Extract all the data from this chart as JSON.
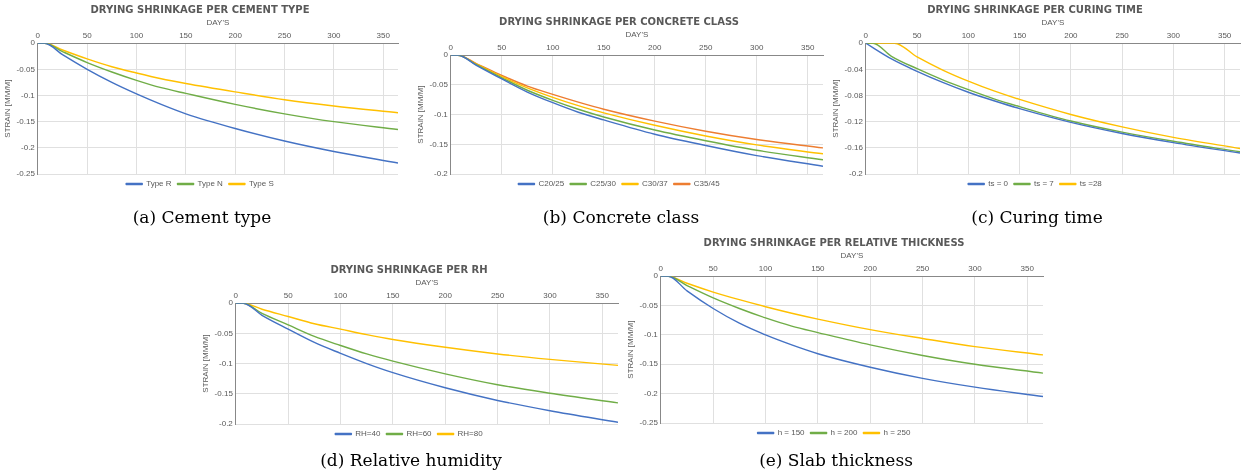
{
  "chart_data": [
    {
      "type": "line",
      "title": "DRYING SHRINKAGE PER CEMENT TYPE",
      "xlabel": "DAY'S",
      "ylabel": "STRAIN [MM/M]",
      "annotations": [
        "(a) Cement type"
      ],
      "x": [
        0,
        7,
        25,
        50,
        75,
        100,
        125,
        150,
        200,
        250,
        300,
        365
      ],
      "xlim": [
        0,
        365
      ],
      "xticks": [
        0,
        50,
        100,
        150,
        200,
        250,
        300,
        350
      ],
      "ylim": [
        -0.25,
        0
      ],
      "yticks": [
        0,
        -0.05,
        -0.1,
        -0.15,
        -0.2,
        -0.25
      ],
      "grid": true,
      "legend": "bottom",
      "marker": "none",
      "line_style": "solid",
      "series": [
        {
          "name": "Type R",
          "color": "#4472c4",
          "values": [
            0,
            0,
            -0.022,
            -0.05,
            -0.075,
            -0.097,
            -0.117,
            -0.135,
            -0.163,
            -0.187,
            -0.207,
            -0.229
          ]
        },
        {
          "name": "Type N",
          "color": "#70ad47",
          "values": [
            0,
            0,
            -0.016,
            -0.037,
            -0.055,
            -0.071,
            -0.085,
            -0.096,
            -0.117,
            -0.135,
            -0.15,
            -0.165
          ]
        },
        {
          "name": "Type S",
          "color": "#ffc000",
          "values": [
            0,
            0,
            -0.013,
            -0.03,
            -0.045,
            -0.057,
            -0.068,
            -0.077,
            -0.093,
            -0.108,
            -0.12,
            -0.133
          ]
        }
      ]
    },
    {
      "type": "line",
      "title": "DRYING SHRINKAGE PER CONCRETE CLASS",
      "xlabel": "DAY'S",
      "ylabel": "STRAIN [MM/M]",
      "annotations": [
        "(b) Concrete class"
      ],
      "x": [
        0,
        7,
        25,
        50,
        75,
        100,
        125,
        150,
        200,
        250,
        300,
        365
      ],
      "xlim": [
        0,
        365
      ],
      "xticks": [
        0,
        50,
        100,
        150,
        200,
        250,
        300,
        350
      ],
      "ylim": [
        -0.2,
        0
      ],
      "yticks": [
        0,
        -0.05,
        -0.1,
        -0.15,
        -0.2
      ],
      "grid": true,
      "legend": "bottom",
      "marker": "none",
      "line_style": "solid",
      "series": [
        {
          "name": "C20/25",
          "color": "#4472c4",
          "values": [
            0,
            0,
            -0.017,
            -0.04,
            -0.062,
            -0.08,
            -0.096,
            -0.109,
            -0.133,
            -0.152,
            -0.169,
            -0.187
          ]
        },
        {
          "name": "C25/30",
          "color": "#70ad47",
          "values": [
            0,
            0,
            -0.016,
            -0.038,
            -0.059,
            -0.076,
            -0.091,
            -0.104,
            -0.126,
            -0.144,
            -0.16,
            -0.176
          ]
        },
        {
          "name": "C30/37",
          "color": "#ffc000",
          "values": [
            0,
            0,
            -0.015,
            -0.036,
            -0.055,
            -0.071,
            -0.085,
            -0.097,
            -0.118,
            -0.136,
            -0.151,
            -0.166
          ]
        },
        {
          "name": "C35/45",
          "color": "#ed7d31",
          "values": [
            0,
            0,
            -0.014,
            -0.034,
            -0.052,
            -0.066,
            -0.079,
            -0.091,
            -0.111,
            -0.128,
            -0.142,
            -0.156
          ]
        }
      ]
    },
    {
      "type": "line",
      "title": "DRYING SHRINKAGE PER CURING TIME",
      "xlabel": "DAY'S",
      "ylabel": "STRAIN [MM/M]",
      "annotations": [
        "(c) Curing time"
      ],
      "xlim": [
        0,
        365
      ],
      "xticks": [
        0,
        50,
        100,
        150,
        200,
        250,
        300,
        350
      ],
      "ylim": [
        -0.2,
        0
      ],
      "yticks": [
        0,
        -0.04,
        -0.08,
        -0.12,
        -0.16,
        -0.2
      ],
      "grid": true,
      "legend": "bottom",
      "marker": "none",
      "line_style": "solid",
      "series": [
        {
          "name": "ts = 0",
          "color": "#4472c4",
          "x": [
            0,
            25,
            50,
            75,
            100,
            125,
            150,
            200,
            250,
            300,
            365
          ],
          "values": [
            0,
            -0.024,
            -0.043,
            -0.06,
            -0.075,
            -0.088,
            -0.1,
            -0.121,
            -0.138,
            -0.152,
            -0.168
          ]
        },
        {
          "name": "ts = 7",
          "color": "#70ad47",
          "x": [
            0,
            7,
            25,
            50,
            75,
            100,
            125,
            150,
            200,
            250,
            300,
            365
          ],
          "values": [
            0,
            0,
            -0.02,
            -0.039,
            -0.056,
            -0.071,
            -0.085,
            -0.097,
            -0.119,
            -0.136,
            -0.15,
            -0.166
          ]
        },
        {
          "name": "ts =28",
          "color": "#ffc000",
          "x": [
            0,
            28,
            50,
            75,
            100,
            125,
            150,
            200,
            250,
            300,
            365
          ],
          "values": [
            0,
            0,
            -0.021,
            -0.041,
            -0.058,
            -0.073,
            -0.086,
            -0.109,
            -0.128,
            -0.144,
            -0.161
          ]
        }
      ]
    },
    {
      "type": "line",
      "title": "DRYING SHRINKAGE PER RH",
      "xlabel": "DAY'S",
      "ylabel": "STRAIN [MM/M]",
      "annotations": [
        "(d) Relative humidity"
      ],
      "x": [
        0,
        7,
        25,
        50,
        75,
        100,
        125,
        150,
        200,
        250,
        300,
        365
      ],
      "xlim": [
        0,
        365
      ],
      "xticks": [
        0,
        50,
        100,
        150,
        200,
        250,
        300,
        350
      ],
      "ylim": [
        -0.2,
        0
      ],
      "yticks": [
        0,
        -0.05,
        -0.1,
        -0.15,
        -0.2
      ],
      "grid": true,
      "legend": "bottom",
      "marker": "none",
      "line_style": "solid",
      "series": [
        {
          "name": "RH=40",
          "color": "#4472c4",
          "values": [
            0,
            0,
            -0.02,
            -0.043,
            -0.065,
            -0.083,
            -0.1,
            -0.115,
            -0.14,
            -0.161,
            -0.178,
            -0.197
          ]
        },
        {
          "name": "RH=60",
          "color": "#70ad47",
          "values": [
            0,
            0,
            -0.017,
            -0.036,
            -0.055,
            -0.07,
            -0.084,
            -0.096,
            -0.117,
            -0.135,
            -0.149,
            -0.165
          ]
        },
        {
          "name": "RH=80",
          "color": "#ffc000",
          "values": [
            0,
            0,
            -0.01,
            -0.022,
            -0.034,
            -0.043,
            -0.052,
            -0.06,
            -0.073,
            -0.084,
            -0.093,
            -0.103
          ]
        }
      ]
    },
    {
      "type": "line",
      "title": "DRYING SHRINKAGE PER RELATIVE THICKNESS",
      "xlabel": "DAY'S",
      "ylabel": "STRAIN [MM/M]",
      "annotations": [
        "(e) Slab thickness"
      ],
      "x": [
        0,
        7,
        25,
        50,
        75,
        100,
        125,
        150,
        200,
        250,
        300,
        365
      ],
      "xlim": [
        0,
        365
      ],
      "xticks": [
        0,
        50,
        100,
        150,
        200,
        250,
        300,
        350
      ],
      "ylim": [
        -0.25,
        0
      ],
      "yticks": [
        0,
        -0.05,
        -0.1,
        -0.15,
        -0.2,
        -0.25
      ],
      "grid": true,
      "legend": "bottom",
      "marker": "none",
      "line_style": "solid",
      "series": [
        {
          "name": "h = 150",
          "color": "#4472c4",
          "values": [
            0,
            0,
            -0.025,
            -0.055,
            -0.08,
            -0.1,
            -0.117,
            -0.132,
            -0.155,
            -0.174,
            -0.189,
            -0.205
          ]
        },
        {
          "name": "h = 200",
          "color": "#70ad47",
          "values": [
            0,
            0,
            -0.016,
            -0.037,
            -0.055,
            -0.071,
            -0.085,
            -0.096,
            -0.117,
            -0.135,
            -0.15,
            -0.165
          ]
        },
        {
          "name": "h = 250",
          "color": "#ffc000",
          "values": [
            0,
            0,
            -0.012,
            -0.027,
            -0.04,
            -0.052,
            -0.063,
            -0.073,
            -0.091,
            -0.106,
            -0.12,
            -0.134
          ]
        }
      ]
    }
  ]
}
